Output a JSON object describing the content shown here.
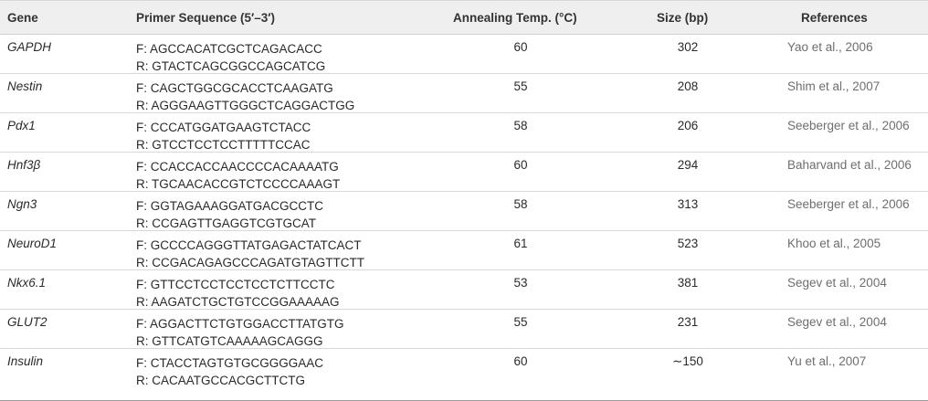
{
  "headers": {
    "gene": "Gene",
    "primer": "Primer Sequence (5′–3′)",
    "temp": "Annealing Temp. (°C)",
    "size": "Size (bp)",
    "refs": "References"
  },
  "rows": [
    {
      "gene": "GAPDH",
      "forward": "F: AGCCACATCGCTCAGACACC",
      "reverse": "R: GTACTCAGCGGCCAGCATCG",
      "temp": "60",
      "size": "302",
      "ref": "Yao et al., 2006"
    },
    {
      "gene": "Nestin",
      "forward": "F: CAGCTGGCGCACCTCAAGATG",
      "reverse": "R: AGGGAAGTTGGGCTCAGGACTGG",
      "temp": "55",
      "size": "208",
      "ref": "Shim et al., 2007"
    },
    {
      "gene": "Pdx1",
      "forward": "F: CCCATGGATGAAGTCTACC",
      "reverse": "R: GTCCTCCTCCTTTTTCCAC",
      "temp": "58",
      "size": "206",
      "ref": "Seeberger et al., 2006"
    },
    {
      "gene": "Hnf3β",
      "forward": "F: CCACCACCAACCCCACAAAATG",
      "reverse": "R: TGCAACACCGTCTCCCCAAAGT",
      "temp": "60",
      "size": "294",
      "ref": "Baharvand et al., 2006"
    },
    {
      "gene": "Ngn3",
      "forward": "F: GGTAGAAAGGATGACGCCTC",
      "reverse": "R: CCGAGTTGAGGTCGTGCAT",
      "temp": "58",
      "size": "313",
      "ref": "Seeberger et al., 2006"
    },
    {
      "gene": "NeuroD1",
      "forward": "F: GCCCCAGGGTTATGAGACTATCACT",
      "reverse": "R: CCGACAGAGCCCAGATGTAGTTCTT",
      "temp": "61",
      "size": "523",
      "ref": "Khoo et al., 2005"
    },
    {
      "gene": "Nkx6.1",
      "forward": "F: GTTCCTCCTCCTCCTCTTCCTC",
      "reverse": "R: AAGATCTGCTGTCCGGAAAAAG",
      "temp": "53",
      "size": "381",
      "ref": "Segev et al., 2004"
    },
    {
      "gene": "GLUT2",
      "forward": "F: AGGACTTCTGTGGACCTTATGTG",
      "reverse": "R: GTTCATGTCAAAAAGCAGGG",
      "temp": "55",
      "size": "231",
      "ref": "Segev et al., 2004"
    },
    {
      "gene": "Insulin",
      "forward": "F: CTACCTAGTGTGCGGGGAAC",
      "reverse": "R: CACAATGCCACGCTTCTG",
      "temp": "60",
      "size": "∼150",
      "ref": "Yu et al., 2007"
    }
  ]
}
